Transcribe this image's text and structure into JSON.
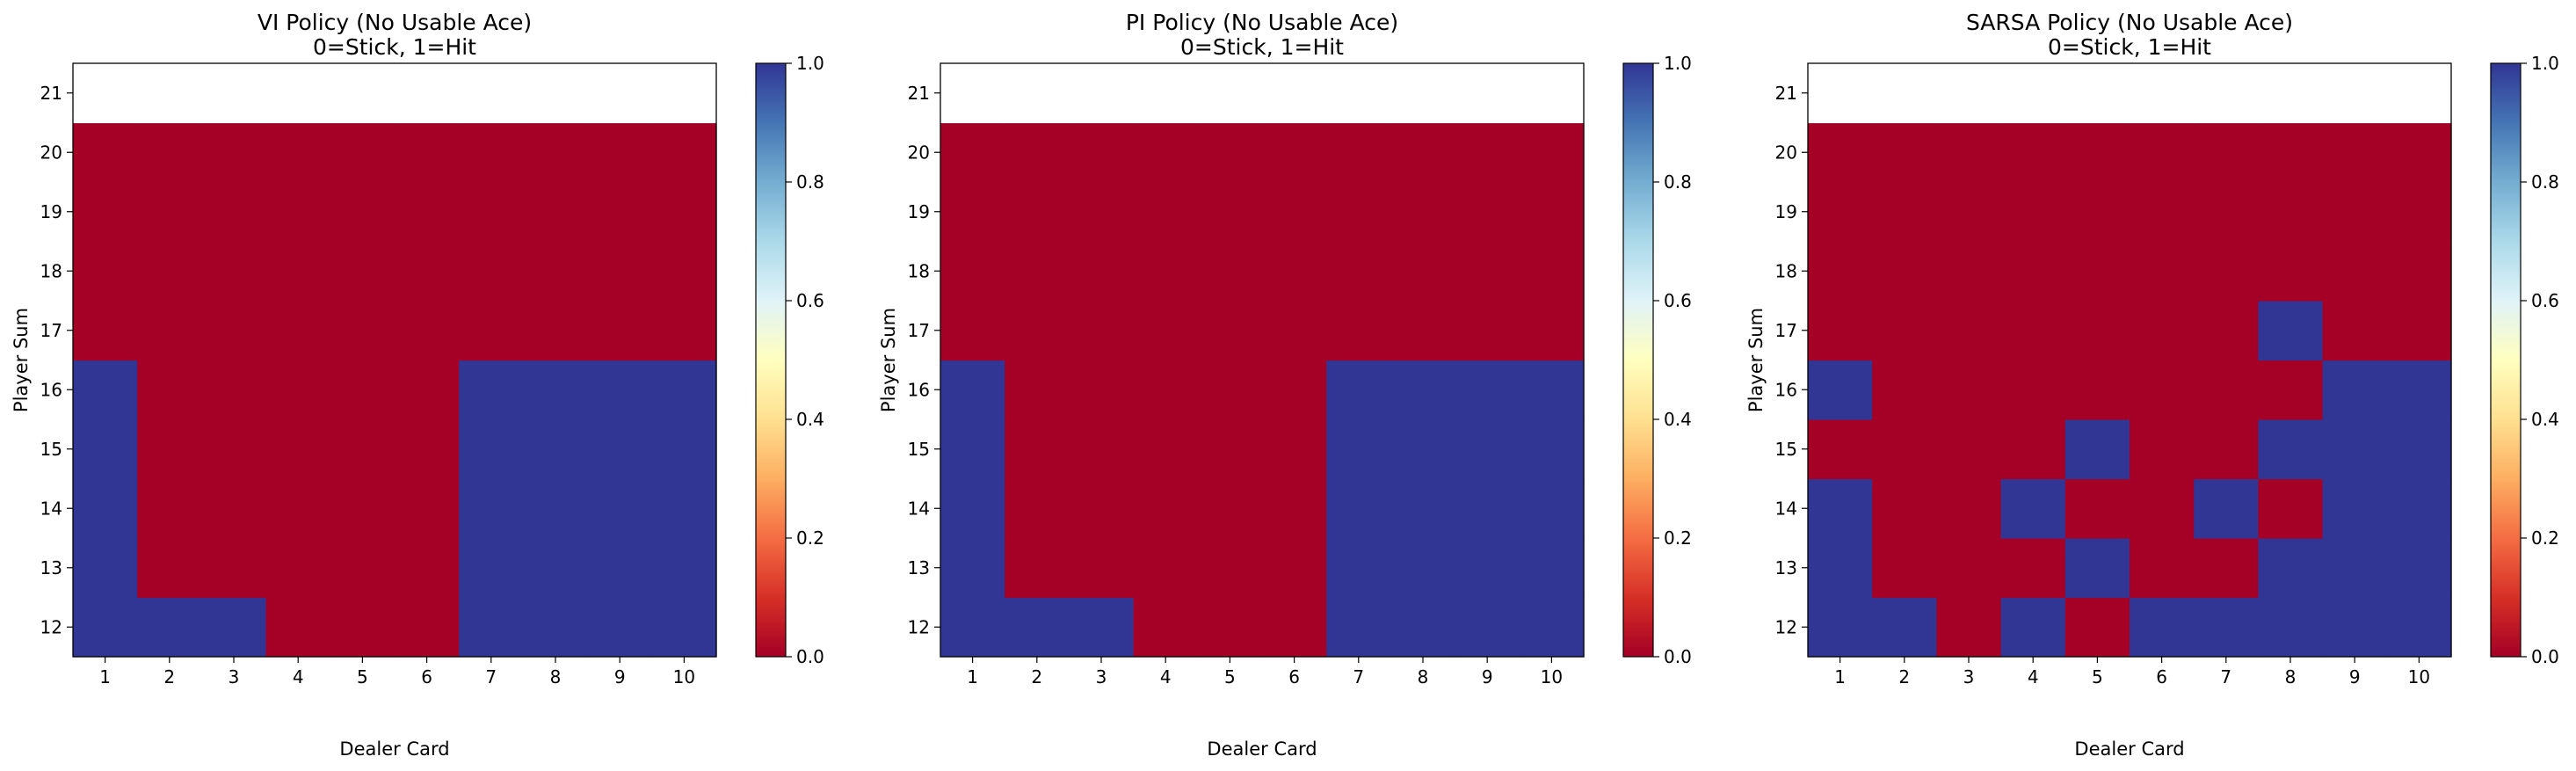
{
  "chart_data": [
    {
      "type": "heatmap",
      "title": "VI Policy (No Usable Ace)",
      "subtitle": "0=Stick, 1=Hit",
      "xlabel": "Dealer Card",
      "ylabel": "Player Sum",
      "x": [
        1,
        2,
        3,
        4,
        5,
        6,
        7,
        8,
        9,
        10
      ],
      "y": [
        12,
        13,
        14,
        15,
        16,
        17,
        18,
        19,
        20,
        21
      ],
      "values": [
        [
          1,
          1,
          1,
          0,
          0,
          0,
          1,
          1,
          1,
          1
        ],
        [
          1,
          0,
          0,
          0,
          0,
          0,
          1,
          1,
          1,
          1
        ],
        [
          1,
          0,
          0,
          0,
          0,
          0,
          1,
          1,
          1,
          1
        ],
        [
          1,
          0,
          0,
          0,
          0,
          0,
          1,
          1,
          1,
          1
        ],
        [
          1,
          0,
          0,
          0,
          0,
          0,
          1,
          1,
          1,
          1
        ],
        [
          0,
          0,
          0,
          0,
          0,
          0,
          0,
          0,
          0,
          0
        ],
        [
          0,
          0,
          0,
          0,
          0,
          0,
          0,
          0,
          0,
          0
        ],
        [
          0,
          0,
          0,
          0,
          0,
          0,
          0,
          0,
          0,
          0
        ],
        [
          0,
          0,
          0,
          0,
          0,
          0,
          0,
          0,
          0,
          0
        ],
        [
          null,
          null,
          null,
          null,
          null,
          null,
          null,
          null,
          null,
          null
        ]
      ],
      "colorbar": {
        "range": [
          0,
          1
        ],
        "ticks": [
          "0.0",
          "0.2",
          "0.4",
          "0.6",
          "0.8",
          "1.0"
        ],
        "colormap": "RdYlBu"
      }
    },
    {
      "type": "heatmap",
      "title": "PI Policy (No Usable Ace)",
      "subtitle": "0=Stick, 1=Hit",
      "xlabel": "Dealer Card",
      "ylabel": "Player Sum",
      "x": [
        1,
        2,
        3,
        4,
        5,
        6,
        7,
        8,
        9,
        10
      ],
      "y": [
        12,
        13,
        14,
        15,
        16,
        17,
        18,
        19,
        20,
        21
      ],
      "values": [
        [
          1,
          1,
          1,
          0,
          0,
          0,
          1,
          1,
          1,
          1
        ],
        [
          1,
          0,
          0,
          0,
          0,
          0,
          1,
          1,
          1,
          1
        ],
        [
          1,
          0,
          0,
          0,
          0,
          0,
          1,
          1,
          1,
          1
        ],
        [
          1,
          0,
          0,
          0,
          0,
          0,
          1,
          1,
          1,
          1
        ],
        [
          1,
          0,
          0,
          0,
          0,
          0,
          1,
          1,
          1,
          1
        ],
        [
          0,
          0,
          0,
          0,
          0,
          0,
          0,
          0,
          0,
          0
        ],
        [
          0,
          0,
          0,
          0,
          0,
          0,
          0,
          0,
          0,
          0
        ],
        [
          0,
          0,
          0,
          0,
          0,
          0,
          0,
          0,
          0,
          0
        ],
        [
          0,
          0,
          0,
          0,
          0,
          0,
          0,
          0,
          0,
          0
        ],
        [
          null,
          null,
          null,
          null,
          null,
          null,
          null,
          null,
          null,
          null
        ]
      ],
      "colorbar": {
        "range": [
          0,
          1
        ],
        "ticks": [
          "0.0",
          "0.2",
          "0.4",
          "0.6",
          "0.8",
          "1.0"
        ],
        "colormap": "RdYlBu"
      }
    },
    {
      "type": "heatmap",
      "title": "SARSA Policy (No Usable Ace)",
      "subtitle": "0=Stick, 1=Hit",
      "xlabel": "Dealer Card",
      "ylabel": "Player Sum",
      "x": [
        1,
        2,
        3,
        4,
        5,
        6,
        7,
        8,
        9,
        10
      ],
      "y": [
        12,
        13,
        14,
        15,
        16,
        17,
        18,
        19,
        20,
        21
      ],
      "values": [
        [
          1,
          1,
          0,
          1,
          0,
          1,
          1,
          1,
          1,
          1
        ],
        [
          1,
          0,
          0,
          0,
          1,
          0,
          0,
          1,
          1,
          1
        ],
        [
          1,
          0,
          0,
          1,
          0,
          0,
          1,
          0,
          1,
          1
        ],
        [
          0,
          0,
          0,
          0,
          1,
          0,
          0,
          1,
          1,
          1
        ],
        [
          1,
          0,
          0,
          0,
          0,
          0,
          0,
          0,
          1,
          1
        ],
        [
          0,
          0,
          0,
          0,
          0,
          0,
          0,
          1,
          0,
          0
        ],
        [
          0,
          0,
          0,
          0,
          0,
          0,
          0,
          0,
          0,
          0
        ],
        [
          0,
          0,
          0,
          0,
          0,
          0,
          0,
          0,
          0,
          0
        ],
        [
          0,
          0,
          0,
          0,
          0,
          0,
          0,
          0,
          0,
          0
        ],
        [
          null,
          null,
          null,
          null,
          null,
          null,
          null,
          null,
          null,
          null
        ]
      ],
      "colorbar": {
        "range": [
          0,
          1
        ],
        "ticks": [
          "0.0",
          "0.2",
          "0.4",
          "0.6",
          "0.8",
          "1.0"
        ],
        "colormap": "RdYlBu"
      }
    }
  ]
}
